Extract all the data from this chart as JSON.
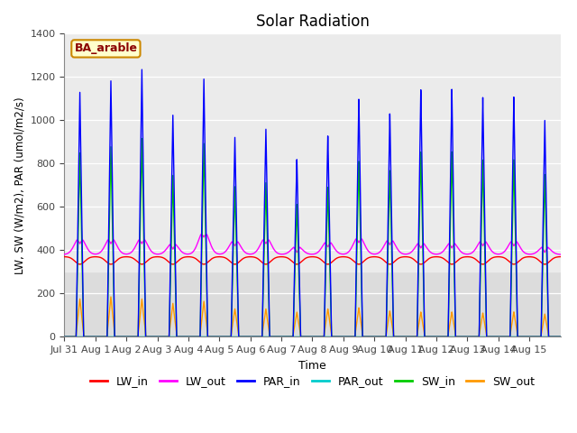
{
  "title": "Solar Radiation",
  "xlabel": "Time",
  "ylabel": "LW, SW (W/m2), PAR (umol/m2/s)",
  "ylim": [
    0,
    1400
  ],
  "yticks": [
    0,
    200,
    400,
    600,
    800,
    1000,
    1200,
    1400
  ],
  "annotation_text": "BA_arable",
  "annotation_bg": "#ffffcc",
  "annotation_border": "#cc8800",
  "series": {
    "LW_in": {
      "color": "#ff0000",
      "label": "LW_in"
    },
    "LW_out": {
      "color": "#ff00ff",
      "label": "LW_out"
    },
    "PAR_in": {
      "color": "#0000ff",
      "label": "PAR_in"
    },
    "PAR_out": {
      "color": "#00cccc",
      "label": "PAR_out"
    },
    "SW_in": {
      "color": "#00cc00",
      "label": "SW_in"
    },
    "SW_out": {
      "color": "#ff9900",
      "label": "SW_out"
    }
  },
  "xtick_labels": [
    "Jul 31",
    "Aug 1",
    "Aug 2",
    "Aug 3",
    "Aug 4",
    "Aug 5",
    "Aug 6",
    "Aug 7",
    "Aug 8",
    "Aug 9",
    "Aug 10",
    "Aug 11",
    "Aug 12",
    "Aug 13",
    "Aug 14",
    "Aug 15"
  ],
  "xtick_positions": [
    0,
    1,
    2,
    3,
    4,
    5,
    6,
    7,
    8,
    9,
    10,
    11,
    12,
    13,
    14,
    15
  ],
  "PAR_in_peaks": [
    1130,
    1185,
    1240,
    1030,
    1200,
    930,
    970,
    830,
    940,
    1110,
    1040,
    1150,
    1150,
    1110,
    1110,
    1000
  ],
  "SW_in_peaks": [
    850,
    880,
    920,
    750,
    900,
    700,
    720,
    620,
    700,
    820,
    775,
    860,
    860,
    820,
    820,
    750
  ],
  "SW_out_peaks": [
    175,
    185,
    175,
    155,
    165,
    130,
    130,
    115,
    130,
    135,
    120,
    115,
    115,
    110,
    115,
    105
  ],
  "LW_out_humps": [
    460,
    460,
    460,
    435,
    490,
    450,
    460,
    420,
    445,
    465,
    455,
    440,
    440,
    450,
    450,
    420
  ],
  "LW_in_base": 370,
  "LW_in_dip": 35,
  "LW_out_base": 380,
  "figsize": [
    6.4,
    4.8
  ],
  "dpi": 100
}
